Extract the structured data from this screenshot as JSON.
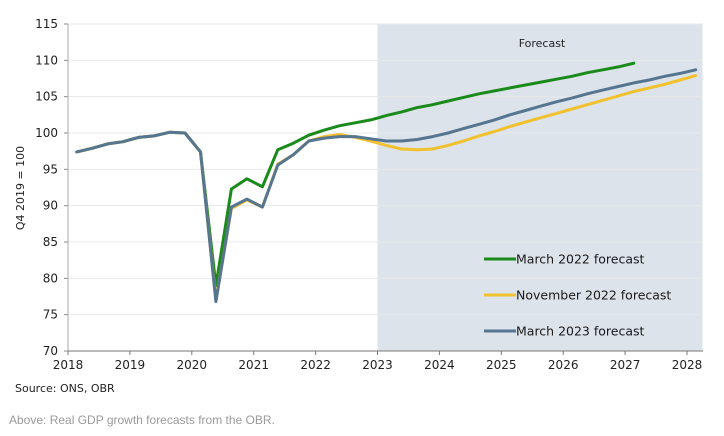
{
  "chart_data": {
    "type": "line",
    "title": "",
    "xlabel": "",
    "ylabel": "Q4 2019 = 100",
    "xlim": [
      2018,
      2028.2
    ],
    "ylim": [
      70,
      115
    ],
    "y_ticks": [
      70,
      75,
      80,
      85,
      90,
      95,
      100,
      105,
      110,
      115
    ],
    "x_ticks": [
      2018,
      2019,
      2020,
      2021,
      2022,
      2023,
      2024,
      2025,
      2026,
      2027,
      2028
    ],
    "grid": "horizontal",
    "shaded_region": {
      "label": "Forecast",
      "from": 2023,
      "to": 2028.25,
      "color": "#dce3ea"
    },
    "legend_position": "bottom-right",
    "series": [
      {
        "name": "March 2022 forecast",
        "color": "#1a8a1a",
        "x": [
          2018.14,
          2018.39,
          2018.64,
          2018.89,
          2019.14,
          2019.39,
          2019.64,
          2019.89,
          2020.14,
          2020.39,
          2020.64,
          2020.89,
          2021.14,
          2021.39,
          2021.64,
          2021.89,
          2022.14,
          2022.39,
          2022.64,
          2022.89,
          2023.14,
          2023.39,
          2023.64,
          2023.89,
          2024.14,
          2024.39,
          2024.64,
          2024.89,
          2025.14,
          2025.39,
          2025.64,
          2025.89,
          2026.14,
          2026.39,
          2026.64,
          2026.89,
          2027.14
        ],
        "values": [
          97.4,
          97.9,
          98.5,
          98.8,
          99.4,
          99.6,
          100.1,
          100.0,
          97.4,
          79.0,
          92.3,
          93.7,
          92.6,
          97.7,
          98.6,
          99.7,
          100.4,
          101.0,
          101.4,
          101.8,
          102.4,
          102.9,
          103.5,
          103.9,
          104.4,
          104.9,
          105.4,
          105.8,
          106.2,
          106.6,
          107.0,
          107.4,
          107.8,
          108.3,
          108.7,
          109.1,
          109.6
        ]
      },
      {
        "name": "November 2022 forecast",
        "color": "#f2c12e",
        "x": [
          2018.14,
          2018.39,
          2018.64,
          2018.89,
          2019.14,
          2019.39,
          2019.64,
          2019.89,
          2020.14,
          2020.39,
          2020.64,
          2020.89,
          2021.14,
          2021.39,
          2021.64,
          2021.89,
          2022.14,
          2022.39,
          2022.64,
          2022.89,
          2023.14,
          2023.39,
          2023.64,
          2023.89,
          2024.14,
          2024.39,
          2024.64,
          2024.89,
          2025.14,
          2025.39,
          2025.64,
          2025.89,
          2026.14,
          2026.39,
          2026.64,
          2026.89,
          2027.14,
          2027.39,
          2027.64,
          2027.89,
          2028.14
        ],
        "values": [
          97.4,
          97.9,
          98.5,
          98.8,
          99.4,
          99.6,
          100.1,
          100.0,
          97.4,
          77.0,
          89.6,
          90.8,
          89.8,
          95.7,
          97.0,
          98.9,
          99.5,
          99.8,
          99.4,
          98.9,
          98.3,
          97.8,
          97.7,
          97.8,
          98.3,
          98.9,
          99.6,
          100.2,
          100.9,
          101.5,
          102.1,
          102.7,
          103.3,
          103.9,
          104.5,
          105.1,
          105.7,
          106.2,
          106.7,
          107.3,
          107.9
        ]
      },
      {
        "name": "March 2023 forecast",
        "color": "#557590",
        "x": [
          2018.14,
          2018.39,
          2018.64,
          2018.89,
          2019.14,
          2019.39,
          2019.64,
          2019.89,
          2020.14,
          2020.39,
          2020.64,
          2020.89,
          2021.14,
          2021.39,
          2021.64,
          2021.89,
          2022.14,
          2022.39,
          2022.64,
          2022.89,
          2023.14,
          2023.39,
          2023.64,
          2023.89,
          2024.14,
          2024.39,
          2024.64,
          2024.89,
          2025.14,
          2025.39,
          2025.64,
          2025.89,
          2026.14,
          2026.39,
          2026.64,
          2026.89,
          2027.14,
          2027.39,
          2027.64,
          2027.89,
          2028.14
        ],
        "values": [
          97.4,
          97.9,
          98.5,
          98.8,
          99.4,
          99.6,
          100.1,
          100.0,
          97.4,
          76.8,
          89.8,
          90.9,
          89.8,
          95.6,
          97.0,
          98.9,
          99.3,
          99.5,
          99.5,
          99.2,
          98.9,
          98.9,
          99.1,
          99.5,
          100.0,
          100.6,
          101.2,
          101.8,
          102.5,
          103.1,
          103.7,
          104.3,
          104.8,
          105.4,
          105.9,
          106.4,
          106.9,
          107.3,
          107.8,
          108.2,
          108.7
        ]
      }
    ]
  },
  "source": "Source: ONS, OBR",
  "caption": "Above: Real GDP growth forecasts from the OBR."
}
